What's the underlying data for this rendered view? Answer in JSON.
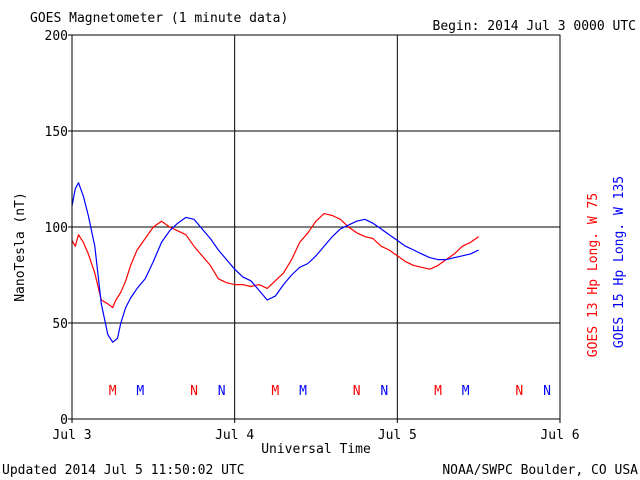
{
  "header": {
    "title": "GOES Magnetometer (1 minute data)",
    "begin": "Begin:  2014 Jul 3 0000 UTC"
  },
  "footer": {
    "updated": "Updated 2014 Jul  5 11:50:02 UTC",
    "credit": "NOAA/SWPC Boulder, CO USA"
  },
  "chart_data": {
    "type": "line",
    "title": "GOES Magnetometer (1 minute data)",
    "xlabel": "Universal Time",
    "ylabel": "NanoTesla (nT)",
    "xlim": [
      0,
      3
    ],
    "ylim": [
      0,
      200
    ],
    "x_unit": "days since 2014 Jul 3 0000 UTC",
    "x_ticks": [
      {
        "value": 0,
        "label": "Jul 3"
      },
      {
        "value": 1,
        "label": "Jul 4"
      },
      {
        "value": 2,
        "label": "Jul 5"
      },
      {
        "value": 3,
        "label": "Jul 6"
      }
    ],
    "y_ticks": [
      0,
      50,
      100,
      150,
      200
    ],
    "grid": true,
    "legend_position": "right-vertical",
    "series": [
      {
        "name": "GOES 13 Hp  Long. W 75",
        "color": "#ff0000",
        "x": [
          0,
          0.02,
          0.04,
          0.07,
          0.1,
          0.14,
          0.18,
          0.22,
          0.25,
          0.27,
          0.3,
          0.33,
          0.36,
          0.4,
          0.45,
          0.5,
          0.55,
          0.6,
          0.65,
          0.7,
          0.75,
          0.8,
          0.85,
          0.9,
          0.95,
          1.0,
          1.05,
          1.1,
          1.15,
          1.2,
          1.25,
          1.3,
          1.35,
          1.4,
          1.45,
          1.5,
          1.55,
          1.6,
          1.65,
          1.7,
          1.75,
          1.8,
          1.85,
          1.9,
          1.95,
          2.0,
          2.05,
          2.1,
          2.15,
          2.2,
          2.25,
          2.3,
          2.35,
          2.4,
          2.45,
          2.5
        ],
        "values": [
          93,
          90,
          96,
          92,
          86,
          76,
          62,
          60,
          58,
          62,
          66,
          72,
          80,
          88,
          94,
          100,
          103,
          100,
          98,
          96,
          90,
          85,
          80,
          73,
          71,
          70,
          70,
          69,
          70,
          68,
          72,
          76,
          83,
          92,
          97,
          103,
          107,
          106,
          104,
          100,
          97,
          95,
          94,
          90,
          88,
          85,
          82,
          80,
          79,
          78,
          80,
          83,
          86,
          90,
          92,
          95
        ]
      },
      {
        "name": "GOES 15 Hp  Long. W 135",
        "color": "#0000ff",
        "x": [
          0,
          0.02,
          0.04,
          0.07,
          0.1,
          0.14,
          0.18,
          0.22,
          0.25,
          0.28,
          0.3,
          0.33,
          0.36,
          0.4,
          0.45,
          0.5,
          0.55,
          0.6,
          0.65,
          0.7,
          0.75,
          0.8,
          0.85,
          0.9,
          0.95,
          1.0,
          1.05,
          1.1,
          1.15,
          1.2,
          1.25,
          1.3,
          1.35,
          1.4,
          1.45,
          1.5,
          1.55,
          1.6,
          1.65,
          1.7,
          1.75,
          1.8,
          1.85,
          1.9,
          1.95,
          2.0,
          2.05,
          2.1,
          2.15,
          2.2,
          2.25,
          2.3,
          2.35,
          2.4,
          2.45,
          2.5
        ],
        "values": [
          111,
          120,
          123,
          116,
          106,
          90,
          60,
          44,
          40,
          42,
          50,
          58,
          63,
          68,
          73,
          82,
          92,
          98,
          102,
          105,
          104,
          99,
          94,
          88,
          83,
          78,
          74,
          72,
          67,
          62,
          64,
          70,
          75,
          79,
          81,
          85,
          90,
          95,
          99,
          101,
          103,
          104,
          102,
          99,
          96,
          93,
          90,
          88,
          86,
          84,
          83,
          83,
          84,
          85,
          86,
          88
        ]
      }
    ],
    "event_markers": [
      {
        "x": 0.25,
        "label": "M",
        "color": "#ff0000"
      },
      {
        "x": 0.42,
        "label": "M",
        "color": "#0000ff"
      },
      {
        "x": 0.75,
        "label": "N",
        "color": "#ff0000"
      },
      {
        "x": 0.92,
        "label": "N",
        "color": "#0000ff"
      },
      {
        "x": 1.25,
        "label": "M",
        "color": "#ff0000"
      },
      {
        "x": 1.42,
        "label": "M",
        "color": "#0000ff"
      },
      {
        "x": 1.75,
        "label": "N",
        "color": "#ff0000"
      },
      {
        "x": 1.92,
        "label": "N",
        "color": "#0000ff"
      },
      {
        "x": 2.25,
        "label": "M",
        "color": "#ff0000"
      },
      {
        "x": 2.42,
        "label": "M",
        "color": "#0000ff"
      },
      {
        "x": 2.75,
        "label": "N",
        "color": "#ff0000"
      },
      {
        "x": 2.92,
        "label": "N",
        "color": "#0000ff"
      }
    ]
  }
}
